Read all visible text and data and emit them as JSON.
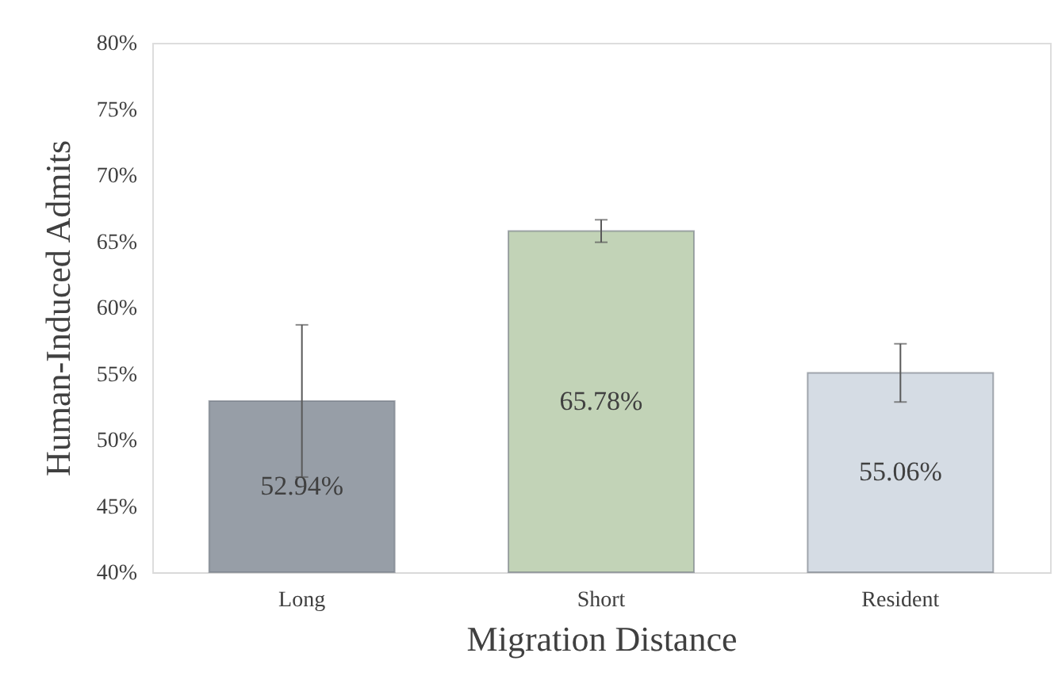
{
  "chart_data": {
    "type": "bar",
    "xlabel": "Migration Distance",
    "ylabel": "Human-Induced Admits",
    "categories": [
      "Long",
      "Short",
      "Resident"
    ],
    "values": [
      52.94,
      65.78,
      55.06
    ],
    "colors": [
      "#979ea7",
      "#c2d3b7",
      "#d5dce4"
    ],
    "errors": [
      5.75,
      0.85,
      2.2
    ],
    "value_labels": [
      "52.94%",
      "65.78%",
      "55.06%"
    ],
    "ylim": [
      40,
      80
    ],
    "yticks": [
      {
        "value": 40,
        "label": "40%"
      },
      {
        "value": 45,
        "label": "45%"
      },
      {
        "value": 50,
        "label": "50%"
      },
      {
        "value": 55,
        "label": "55%"
      },
      {
        "value": 60,
        "label": "60%"
      },
      {
        "value": 65,
        "label": "65%"
      },
      {
        "value": 70,
        "label": "70%"
      },
      {
        "value": 75,
        "label": "75%"
      },
      {
        "value": 80,
        "label": "80%"
      }
    ],
    "grid": false
  }
}
